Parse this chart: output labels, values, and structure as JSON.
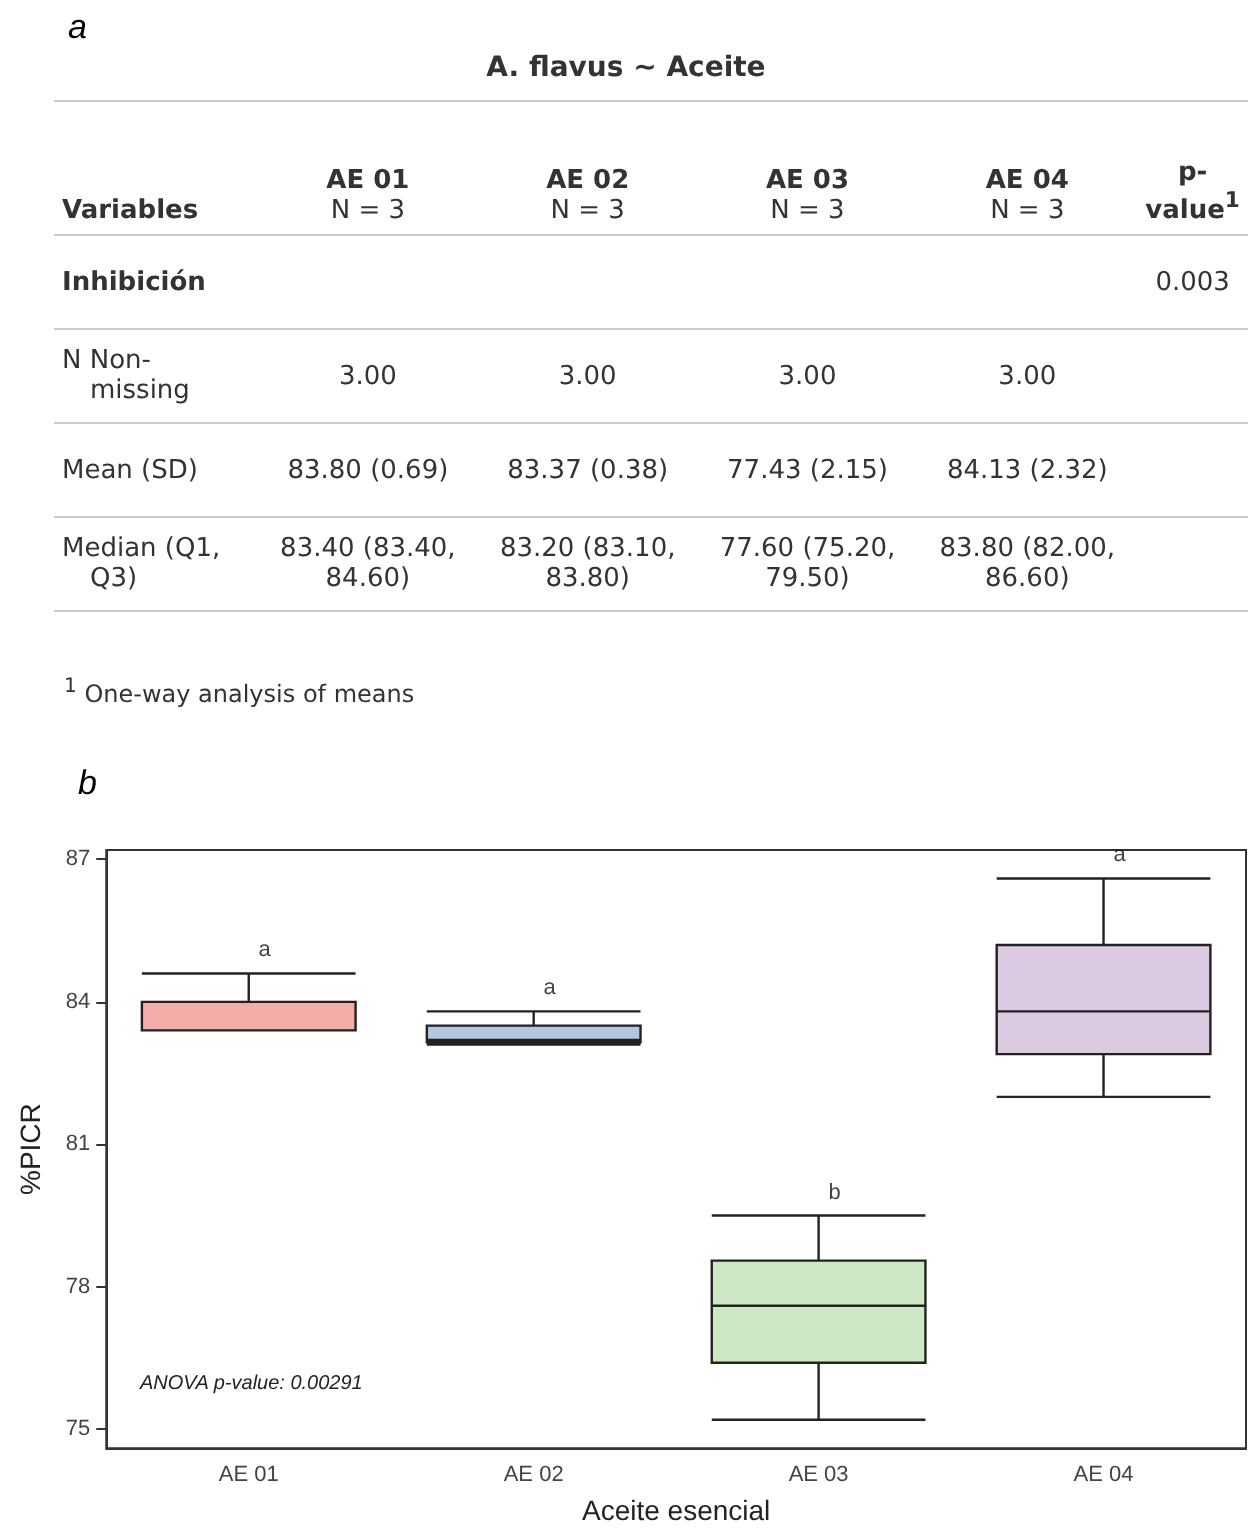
{
  "chart_data": [
    {
      "type": "other",
      "title": "a",
      "subtitle": "A. flavus ~ Aceite",
      "categories": [
        "Variables",
        "AE 01\nN = 3",
        "AE 02\nN = 3",
        "AE 03\nN = 3",
        "AE 04\nN = 3",
        "p-\nvalue$^{1}$"
      ],
      "cells": [
        [
          "Inhibición",
          null,
          null,
          null,
          null,
          "0.003"
        ],
        [
          "N Non-missing",
          "3.00",
          "3.00",
          "3.00",
          "3.00",
          null
        ],
        [
          "Mean (SD)",
          "83.80 (0.69)",
          "83.37 (0.38)",
          "77.43 (2.15)",
          "84.13 (2.32)",
          null
        ],
        [
          "Median (Q1, Q3)",
          "83.40 (83.40, 84.60)",
          "83.20 (83.10, 83.80)",
          "77.60 (75.20, 79.50)",
          "83.80 (82.00, 86.60)",
          null
        ]
      ],
      "annotations": [
        "$^{1}$ One-way analysis of means"
      ]
    },
    {
      "type": "box",
      "title": "b",
      "xlabel": "Aceite esencial",
      "ylabel": "%PICR",
      "categories": [
        "AE 01",
        "AE 02",
        "AE 03",
        "AE 04"
      ],
      "boxes": [
        {
          "low": 83.4,
          "q1": 83.4,
          "median": 83.4,
          "q3": 84.0,
          "high": 84.6
        },
        {
          "low": 83.1,
          "q1": 83.15,
          "median": 83.2,
          "q3": 83.5,
          "high": 83.8
        },
        {
          "low": 75.2,
          "q1": 76.4,
          "median": 77.6,
          "q3": 78.55,
          "high": 79.5
        },
        {
          "low": 82.0,
          "q1": 82.9,
          "median": 83.8,
          "q3": 85.2,
          "high": 86.6
        }
      ],
      "colors": [
        "#f4aca8",
        "#b3c7e0",
        "#cde8c5",
        "#dccae3"
      ],
      "ylim": [
        74.6,
        87.2
      ],
      "yticks": [
        75,
        78,
        81,
        84,
        87
      ],
      "grid": false,
      "annotations": [
        {
          "text": "a",
          "x": "AE 01",
          "y": 84.6
        },
        {
          "text": "a",
          "x": "AE 02",
          "y": 83.8
        },
        {
          "text": "b",
          "x": "AE 03",
          "y": 79.5
        },
        {
          "text": "a",
          "x": "AE 04",
          "y": 86.6
        },
        "ANOVA p-value: 0.00291"
      ]
    }
  ]
}
